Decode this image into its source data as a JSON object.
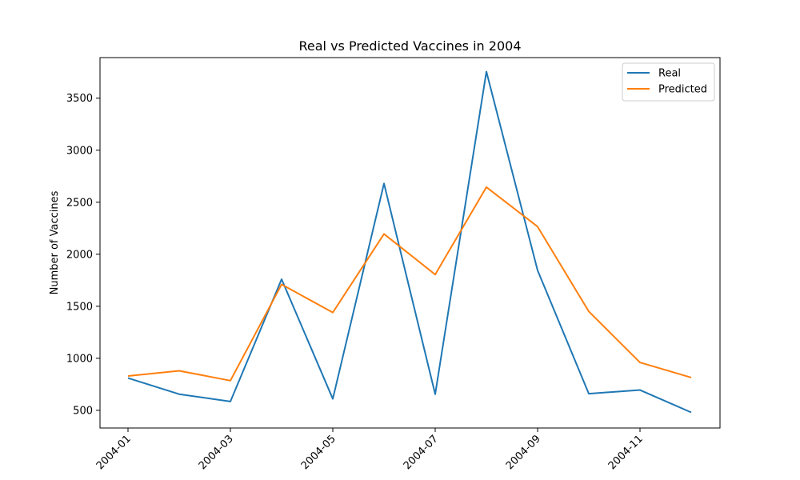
{
  "chart_data": {
    "type": "line",
    "title": "Real vs Predicted Vaccines in 2004",
    "xlabel": "",
    "ylabel": "Number of Vaccines",
    "x": [
      "2004-01",
      "2004-02",
      "2004-03",
      "2004-04",
      "2004-05",
      "2004-06",
      "2004-07",
      "2004-08",
      "2004-09",
      "2004-10",
      "2004-11",
      "2004-12"
    ],
    "x_ticks": [
      "2004-01",
      "2004-03",
      "2004-05",
      "2004-07",
      "2004-09",
      "2004-11"
    ],
    "y_ticks": [
      500,
      1000,
      1500,
      2000,
      2500,
      3000,
      3500
    ],
    "ylim": [
      330,
      3890
    ],
    "grid": false,
    "legend_position": "top-right",
    "series": [
      {
        "name": "Real",
        "color": "#1f77b4",
        "values": [
          810,
          655,
          585,
          1760,
          610,
          2680,
          655,
          3755,
          1845,
          660,
          695,
          480
        ]
      },
      {
        "name": "Predicted",
        "color": "#ff7f0e",
        "values": [
          830,
          880,
          785,
          1710,
          1440,
          2195,
          1805,
          2645,
          2265,
          1450,
          960,
          815
        ]
      }
    ]
  }
}
